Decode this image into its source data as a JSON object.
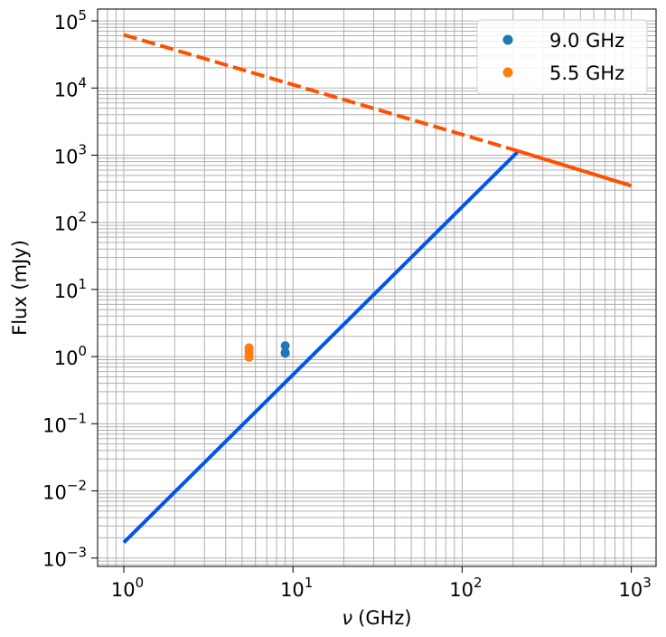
{
  "chart_data": {
    "type": "scatter",
    "xlabel_symbol": "ν",
    "xlabel_unit": "(GHz)",
    "ylabel": "Flux (mJy)",
    "xscale": "log",
    "yscale": "log",
    "xlim": [
      0.7,
      1400
    ],
    "ylim": [
      0.00075,
      150000
    ],
    "grid": true,
    "grid_minor": true,
    "legend_position": "top-right",
    "x_ticks": [
      {
        "base": "10",
        "exp": "0",
        "value": 1
      },
      {
        "base": "10",
        "exp": "1",
        "value": 10
      },
      {
        "base": "10",
        "exp": "2",
        "value": 100
      },
      {
        "base": "10",
        "exp": "3",
        "value": 1000
      }
    ],
    "y_ticks": [
      {
        "base": "10",
        "exp": "−3",
        "value": 0.001
      },
      {
        "base": "10",
        "exp": "−2",
        "value": 0.01
      },
      {
        "base": "10",
        "exp": "−1",
        "value": 0.1
      },
      {
        "base": "10",
        "exp": "0",
        "value": 1
      },
      {
        "base": "10",
        "exp": "1",
        "value": 10
      },
      {
        "base": "10",
        "exp": "2",
        "value": 100
      },
      {
        "base": "10",
        "exp": "3",
        "value": 1000
      },
      {
        "base": "10",
        "exp": "4",
        "value": 10000
      },
      {
        "base": "10",
        "exp": "5",
        "value": 100000
      }
    ],
    "series": [
      {
        "name": "9.0 GHz",
        "kind": "points",
        "color": "#1f77b4",
        "points": [
          [
            9.0,
            1.45
          ],
          [
            9.0,
            1.15
          ],
          [
            9.0,
            1.12
          ]
        ]
      },
      {
        "name": "5.5 GHz",
        "kind": "points",
        "color": "#ff7f0e",
        "points": [
          [
            5.5,
            1.35
          ],
          [
            5.5,
            1.2
          ],
          [
            5.5,
            1.05
          ],
          [
            5.5,
            0.98
          ]
        ]
      }
    ],
    "lines": [
      {
        "kind": "solid",
        "color": "#0055ee",
        "points": [
          [
            1,
            0.0017
          ],
          [
            215,
            1150
          ]
        ]
      },
      {
        "kind": "dashed",
        "color": "#ff5000",
        "points": [
          [
            1,
            62000
          ],
          [
            215,
            1150
          ]
        ]
      },
      {
        "kind": "solid",
        "color": "#ff5000",
        "points": [
          [
            215,
            1150
          ],
          [
            1000,
            350
          ]
        ]
      }
    ]
  }
}
